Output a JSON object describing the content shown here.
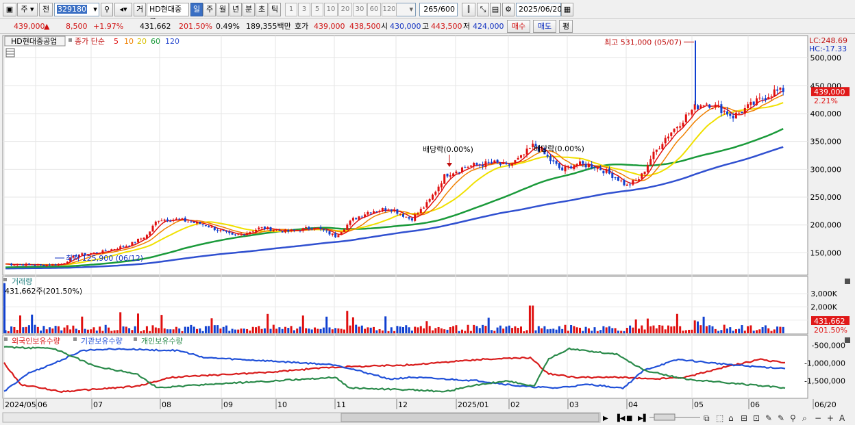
{
  "toolbar": {
    "code_type_label": "주",
    "prev_label": "전",
    "stock_code": "329180",
    "trade_label": "거",
    "stock_name": "HD현대중공",
    "period_buttons": [
      "일",
      "주",
      "월",
      "년",
      "분",
      "초",
      "틱"
    ],
    "minute_options": [
      "1",
      "3",
      "5",
      "10",
      "20",
      "30",
      "60",
      "120"
    ],
    "count_value": "265",
    "count_total": "/600",
    "date_value": "2025/06/20"
  },
  "quote": {
    "price": "439,000",
    "direction": "▲",
    "change": "8,500",
    "change_pct": "+1.97%",
    "volume": "431,662",
    "volume_ratio": "201.50%",
    "turnover_pct": "0.49%",
    "amount": "189,355백만",
    "bid_label": "호가",
    "bid_ask": "439,000",
    "bid_bid": "438,500",
    "open_label": "시",
    "open": "430,000",
    "high_label": "고",
    "high": "443,500",
    "low_label": "저",
    "low": "424,000",
    "buy_button": "매수",
    "sell_button": "매도",
    "eval_button": "평"
  },
  "price_panel": {
    "stock_tag": "HD현대중공업",
    "ma_title": "종가 단순",
    "ma_periods": [
      "5",
      "10",
      "20",
      "60",
      "120"
    ],
    "lc_label": "LC:248.69",
    "hc_label": "HC:-17.33",
    "current_price_tag": "439,000",
    "current_pct_tag": "2.21%",
    "high_annotation": "최고 531,000 (05/07)",
    "low_annotation": "최저 125,900 (06/12)",
    "dividend_annotation_1": "배당락(0.00%)",
    "dividend_annotation_2": "배당락(0.00%)",
    "y_ticks": [
      "500,000",
      "450,000",
      "400,000",
      "350,000",
      "300,000",
      "250,000",
      "200,000",
      "150,000"
    ]
  },
  "volume_panel": {
    "title": "거래량",
    "readout": "431,662주(201.50%)",
    "y_ticks": [
      "3,000K",
      "2,000K",
      "1,000K"
    ],
    "current_tag": "431,662",
    "current_pct_tag": "201.50%"
  },
  "holdings_panel": {
    "series_labels": [
      "외국인보유수량",
      "기관보유수량",
      "개인보유수량"
    ],
    "y_ticks": [
      "-500,000",
      "-1,000,000",
      "-1,500,000"
    ]
  },
  "x_axis": {
    "labels": [
      "2024/05",
      "06",
      "07",
      "08",
      "09",
      "10",
      "11",
      "12",
      "2025/01",
      "02",
      "03",
      "04",
      "05",
      "06",
      "06/20"
    ]
  },
  "colors": {
    "up": "#e01010",
    "down": "#1040d0",
    "ma5": "#e01010",
    "ma10": "#f08000",
    "ma20": "#f0e000",
    "ma60": "#1a9a3a",
    "ma120": "#3050d0",
    "foreign": "#d81a1a",
    "institution": "#2050d8",
    "individual": "#2a8a4a"
  },
  "chart_data": {
    "type": "candlestick",
    "price_range": [
      110000,
      540000
    ],
    "months": [
      "2024/05",
      "06",
      "07",
      "08",
      "09",
      "10",
      "11",
      "12",
      "2025/01",
      "02",
      "03",
      "04",
      "05",
      "06"
    ],
    "close_by_month_approx": [
      128000,
      132000,
      160000,
      210000,
      180000,
      190000,
      185000,
      210000,
      305000,
      310000,
      300000,
      285000,
      400000,
      430000
    ],
    "high": 531000,
    "low": 125900,
    "last_close": 439000
  }
}
